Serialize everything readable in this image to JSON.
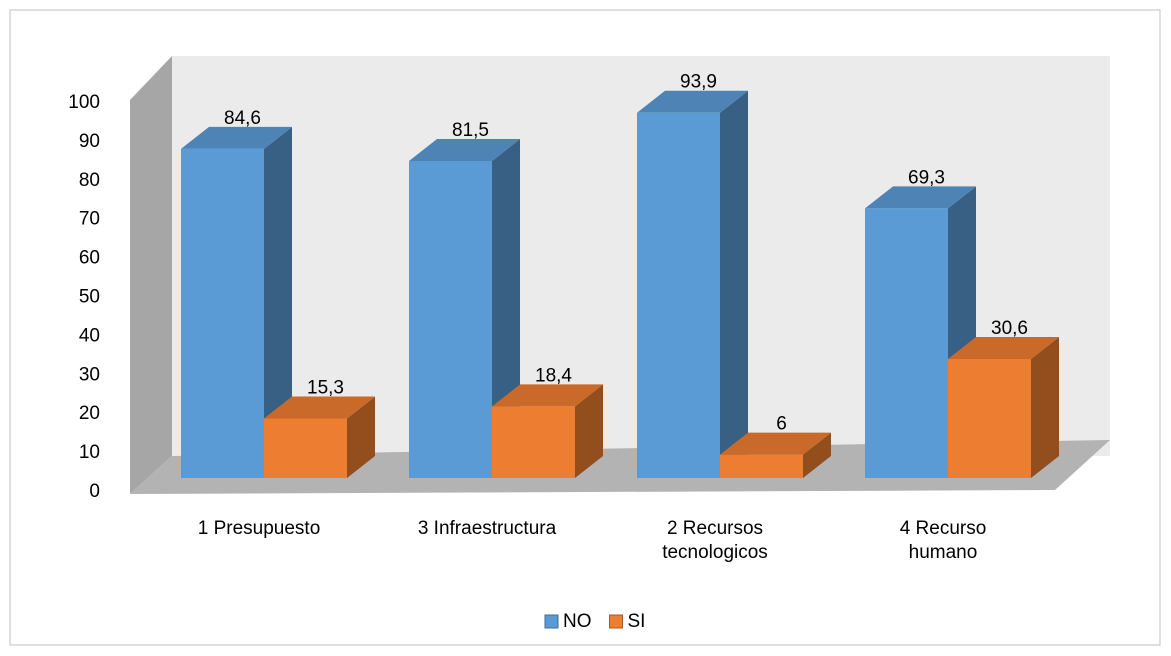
{
  "chart_data": {
    "type": "bar3d",
    "categories": [
      "1 Presupuesto",
      "3 Infraestructura",
      "2 Recursos tecnologicos",
      "4 Recurso humano"
    ],
    "series": [
      {
        "name": "NO",
        "color": "#5b9bd5",
        "values": [
          84.6,
          81.5,
          93.9,
          69.3
        ],
        "value_labels": [
          "84,6",
          "81,5",
          "93,9",
          "69,3"
        ]
      },
      {
        "name": "SI",
        "color": "#ed7d31",
        "values": [
          15.3,
          18.4,
          6,
          30.6
        ],
        "value_labels": [
          "15,3",
          "18,4",
          "6",
          "30,6"
        ]
      }
    ],
    "ylim": [
      0,
      100
    ],
    "yticks": [
      0,
      10,
      20,
      30,
      40,
      50,
      60,
      70,
      80,
      90,
      100
    ],
    "legend": "bottom"
  }
}
